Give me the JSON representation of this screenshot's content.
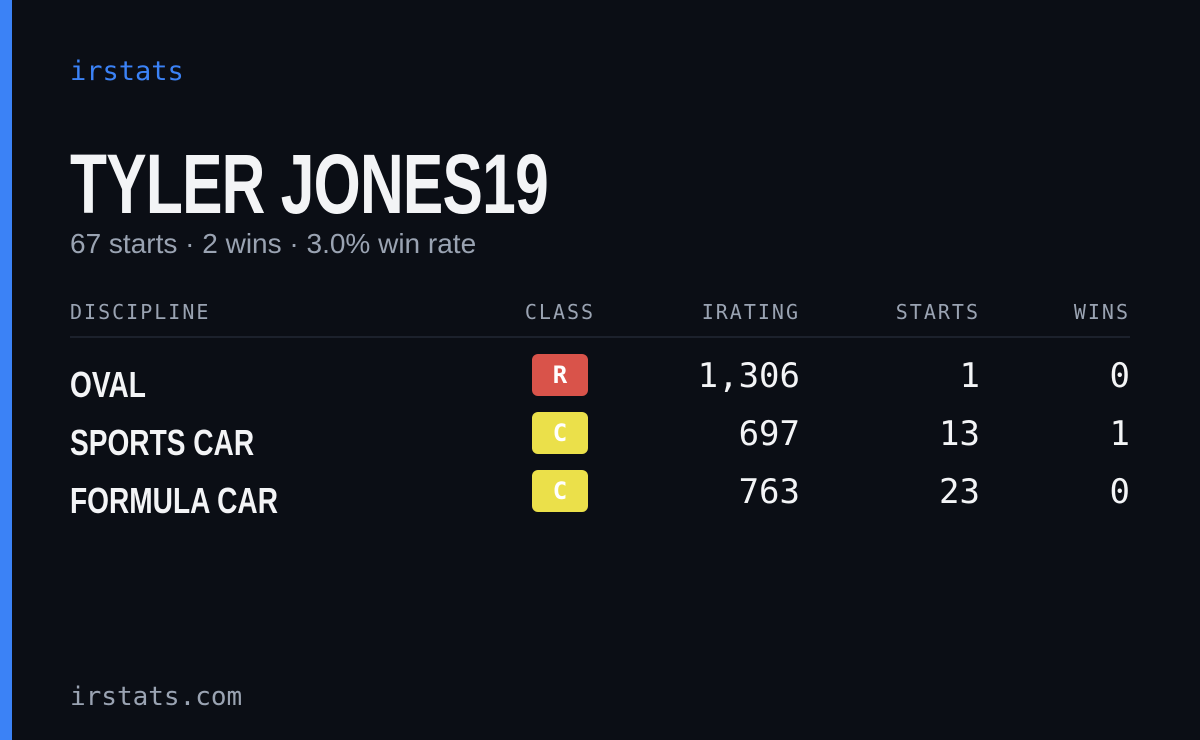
{
  "brand": "irstats",
  "driver": {
    "name": "TYLER JONES19",
    "summary": "67 starts · 2 wins · 3.0% win rate"
  },
  "table": {
    "headers": [
      "DISCIPLINE",
      "CLASS",
      "IRATING",
      "STARTS",
      "WINS"
    ],
    "rows": [
      {
        "discipline": "OVAL",
        "class": "R",
        "class_color": "#d9534a",
        "irating": "1,306",
        "starts": 1,
        "wins": 0
      },
      {
        "discipline": "SPORTS CAR",
        "class": "C",
        "class_color": "#ebe04a",
        "irating": "697",
        "starts": 13,
        "wins": 1
      },
      {
        "discipline": "FORMULA CAR",
        "class": "C",
        "class_color": "#ebe04a",
        "irating": "763",
        "starts": 23,
        "wins": 0
      }
    ]
  },
  "footer": "irstats.com"
}
